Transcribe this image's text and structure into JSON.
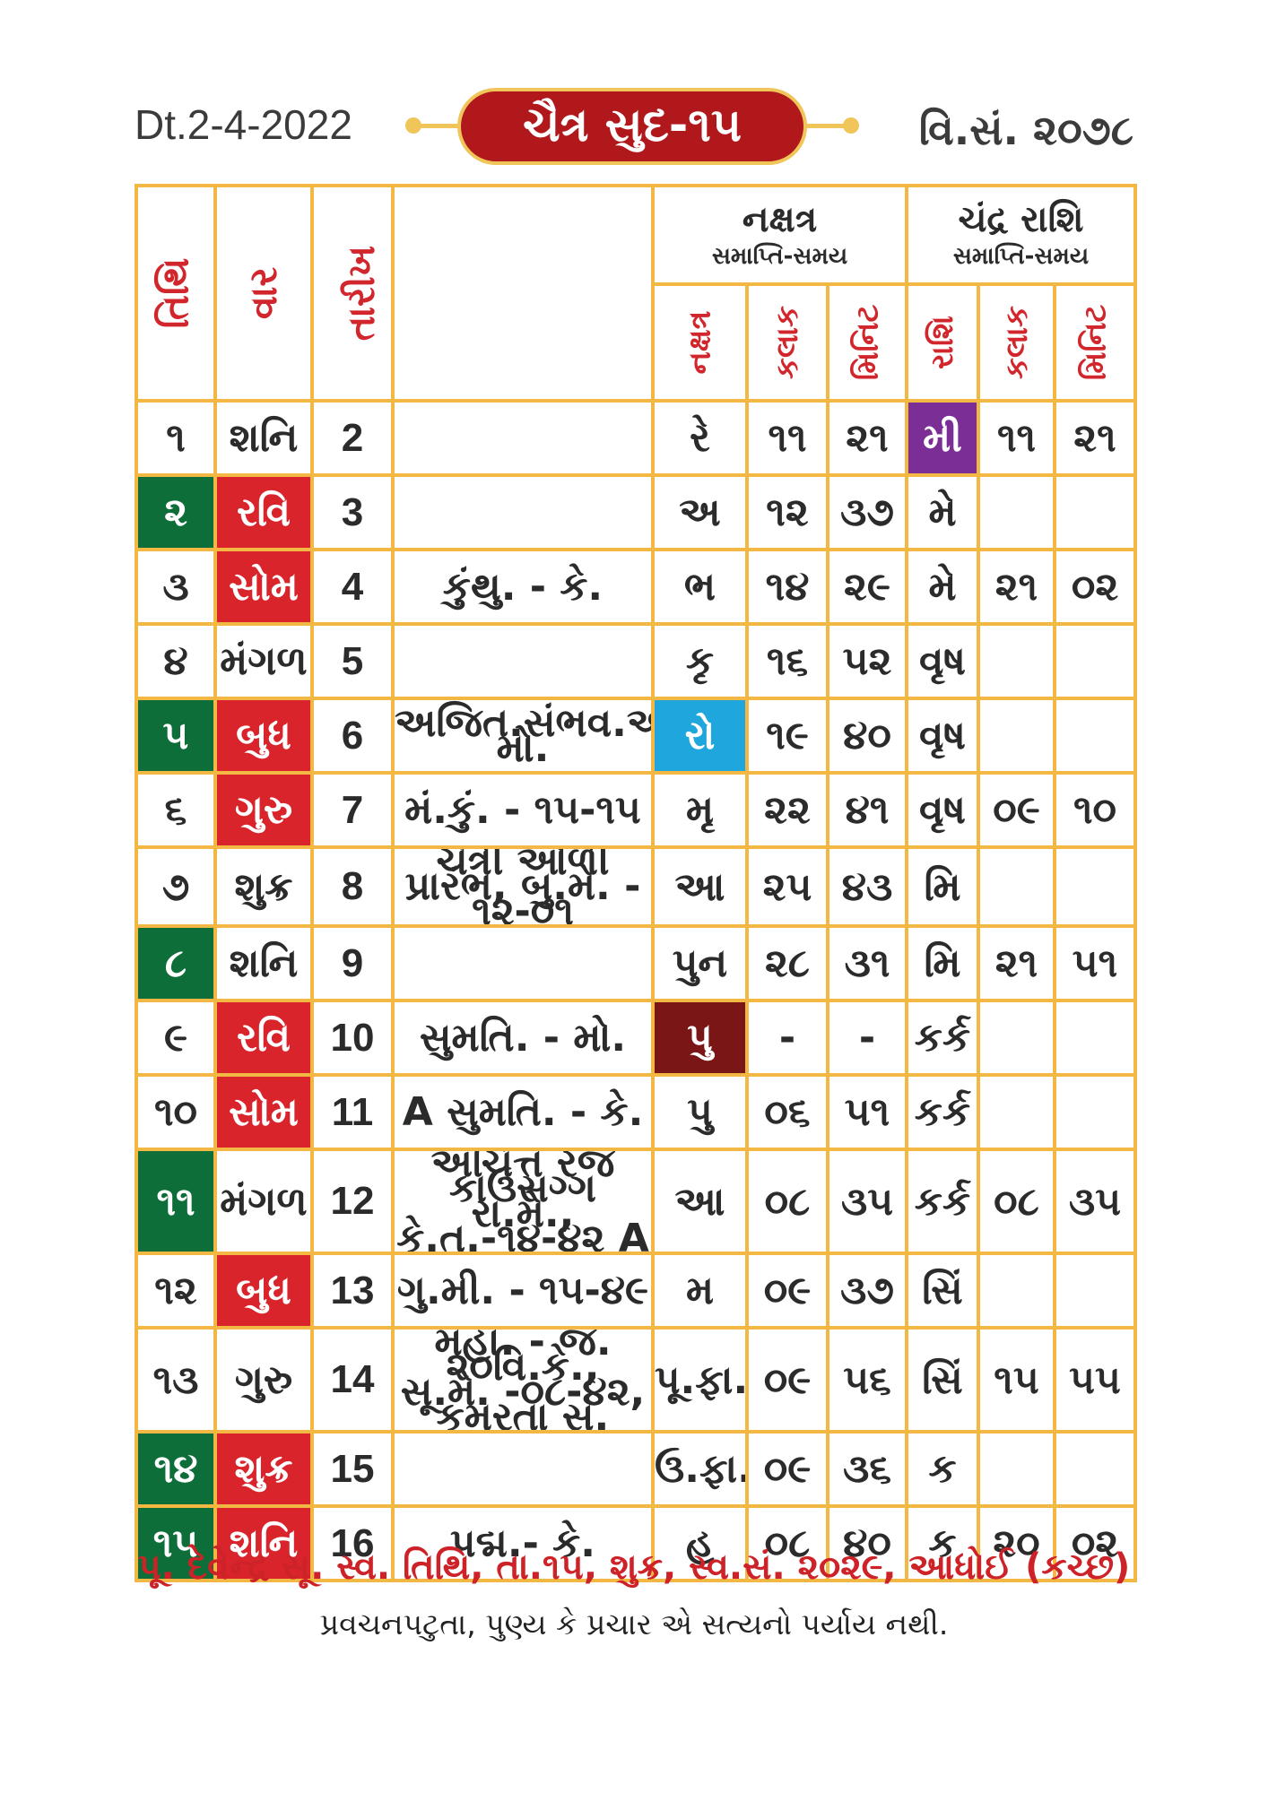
{
  "header": {
    "date": "Dt.2-4-2022",
    "title": "ચૈત્ર સુદ-૧૫",
    "vikram_samvat": "વિ.સં. ૨૦૭૮"
  },
  "table_headers": {
    "tithi": "તિથિ",
    "vaar": "વાર",
    "tarikh": "તારીખ",
    "nakshatra_title": "નક્ષત્ર",
    "nakshatra_sub": "સમાપ્તિ-સમય",
    "chandra_title": "ચંદ્ર રાશિ",
    "chandra_sub": "સમાપ્તિ-સમય",
    "nak": "નક્ષત્ર",
    "kalak1": "કલાક",
    "minit1": "મિનિટ",
    "rashi": "રાશિ",
    "kalak2": "કલાક",
    "minit2": "મિનિટ"
  },
  "rows": [
    {
      "tithi": "૧",
      "vaar": "શનિ",
      "tarikh": "2",
      "note": "",
      "nak": "રે",
      "nk": "૧૧",
      "nm": "૨૧",
      "rashi": "મી",
      "rk": "૧૧",
      "rm": "૨૧"
    },
    {
      "tithi": "૨",
      "vaar": "રવિ",
      "tarikh": "3",
      "note": "",
      "nak": "અ",
      "nk": "૧૨",
      "nm": "૩૭",
      "rashi": "મે",
      "rk": "",
      "rm": ""
    },
    {
      "tithi": "૩",
      "vaar": "સોમ",
      "tarikh": "4",
      "note": "કુંથુ. - કે.",
      "nak": "ભ",
      "nk": "૧૪",
      "nm": "૨૯",
      "rashi": "મે",
      "rk": "૨૧",
      "rm": "૦૨"
    },
    {
      "tithi": "૪",
      "vaar": "મંગળ",
      "tarikh": "5",
      "note": "",
      "nak": "કૃ",
      "nk": "૧૬",
      "nm": "૫૨",
      "rashi": "વૃષ",
      "rk": "",
      "rm": ""
    },
    {
      "tithi": "૫",
      "vaar": "બુધ",
      "tarikh": "6",
      "note": "અજિત.સંભવ.અનંત.-મો.",
      "nak": "રો",
      "nk": "૧૯",
      "nm": "૪૦",
      "rashi": "વૃષ",
      "rk": "",
      "rm": ""
    },
    {
      "tithi": "૬",
      "vaar": "ગુરુ",
      "tarikh": "7",
      "note": "મં.કું. - ૧૫-૧૫",
      "nak": "મૃ",
      "nk": "૨૨",
      "nm": "૪૧",
      "rashi": "વૃષ",
      "rk": "૦૯",
      "rm": "૧૦"
    },
    {
      "tithi": "૭",
      "vaar": "શુક્ર",
      "tarikh": "8",
      "note": "ચૈત્રી ઓળી પ્રારંભ, બુ.મે. - ૧૨-૦૧",
      "nak": "આ",
      "nk": "૨૫",
      "nm": "૪૩",
      "rashi": "મિ",
      "rk": "",
      "rm": ""
    },
    {
      "tithi": "૮",
      "vaar": "શનિ",
      "tarikh": "9",
      "note": "",
      "nak": "પુન",
      "nk": "૨૮",
      "nm": "૩૧",
      "rashi": "મિ",
      "rk": "૨૧",
      "rm": "૫૧"
    },
    {
      "tithi": "૯",
      "vaar": "રવિ",
      "tarikh": "10",
      "note": "સુમતિ. - મો.",
      "nak": "પુ",
      "nk": "-",
      "nm": "-",
      "rashi": "કર્ક",
      "rk": "",
      "rm": ""
    },
    {
      "tithi": "૧૦",
      "vaar": "સોમ",
      "tarikh": "11",
      "note": "A સુમતિ. - કે.",
      "nak": "પુ",
      "nk": "૦૬",
      "nm": "૫૧",
      "rashi": "કર્ક",
      "rk": "",
      "rm": ""
    },
    {
      "tithi": "૧૧",
      "vaar": "મંગળ",
      "tarikh": "12",
      "note": "અચિત્ત રજ કાઉસગ્ગ રા.મે., કે.તુ.-૧૪-૪૨ A",
      "nak": "આ",
      "nk": "૦૮",
      "nm": "૩૫",
      "rashi": "કર્ક",
      "rk": "૦૮",
      "rm": "૩૫"
    },
    {
      "tithi": "૧૨",
      "vaar": "બુધ",
      "tarikh": "13",
      "note": "ગુ.મી. - ૧૫-૪૯",
      "nak": "મ",
      "nk": "૦૯",
      "nm": "૩૭",
      "rashi": "સિં",
      "rk": "",
      "rm": ""
    },
    {
      "tithi": "૧૩",
      "vaar": "ગુરુ",
      "tarikh": "14",
      "note": "મહા. - જ. ૨૦વિ.કે., સૂ.મે. -૦૮-૪૨, કમૂરતા સ.",
      "nak": "પૂ.ફા.",
      "nk": "૦૯",
      "nm": "૫૬",
      "rashi": "સિં",
      "rk": "૧૫",
      "rm": "૫૫"
    },
    {
      "tithi": "૧૪",
      "vaar": "શુક્ર",
      "tarikh": "15",
      "note": "",
      "nak": "ઉ.ફા.",
      "nk": "૦૯",
      "nm": "૩૬",
      "rashi": "ક",
      "rk": "",
      "rm": ""
    },
    {
      "tithi": "૧૫",
      "vaar": "શનિ",
      "tarikh": "16",
      "note": "પદ્મ.- કે.",
      "nak": "હ",
      "nk": "૦૮",
      "nm": "૪૦",
      "rashi": "ક",
      "rk": "૨૦",
      "rm": "૦૨"
    }
  ],
  "colors": {
    "border": "#f2b843",
    "tithi_highlight": "#0e6e3a",
    "vaar_highlight": "#d9242c",
    "nak_rohini": "#1fa6dd",
    "nak_pushya": "#7a1616",
    "rashi_meen": "#7b2f96"
  },
  "footer": {
    "line1": "પૂ. દેવેન્દ્ર સૂ. સ્વ. તિથિ, તા.૧૫, શુક્ર, સ્વ.સં. ૨૦૨૯, આધોઈ (કચ્છ)",
    "line2": "પ્રવચનપટુતા, પુણ્ય કે પ્રચાર એ સત્યનો પર્યાય નથી."
  }
}
